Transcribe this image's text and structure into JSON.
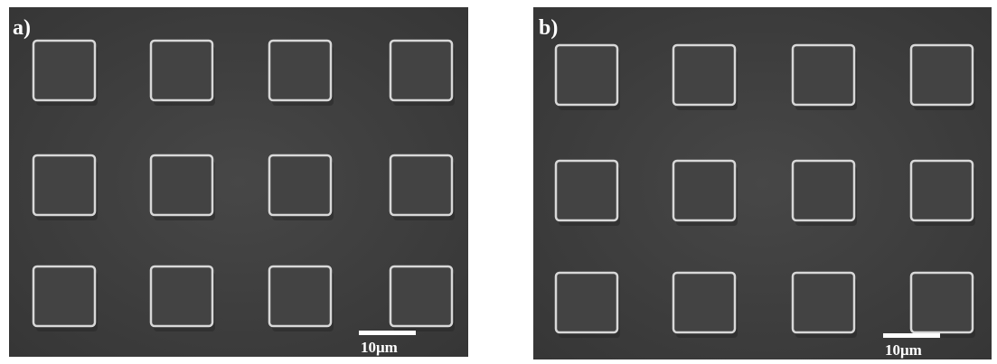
{
  "panels": [
    {
      "label": "a)",
      "scale_bar": "10μm"
    },
    {
      "label": "b)",
      "scale_bar": "10μm"
    }
  ]
}
